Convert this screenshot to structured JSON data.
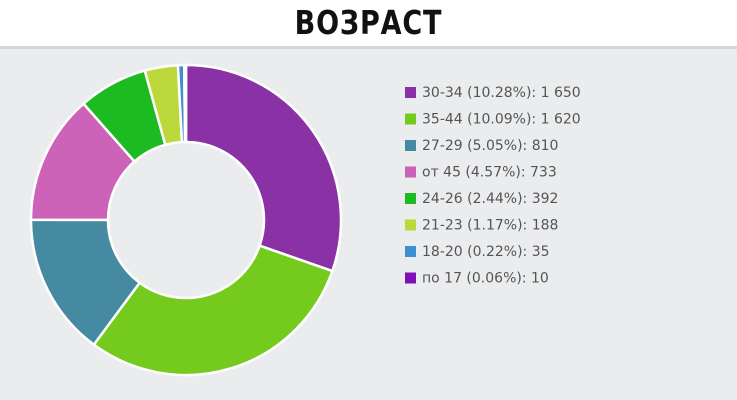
{
  "title": "ВОЗРАСТ",
  "chart_data": {
    "type": "pie",
    "variant": "donut",
    "slices": [
      {
        "label": "30-34",
        "percent": "10.28%",
        "value": 1650,
        "color": "#8a32a5",
        "legend": "30-34 (10.28%): 1 650"
      },
      {
        "label": "35-44",
        "percent": "10.09%",
        "value": 1620,
        "color": "#74cb1e",
        "legend": "35-44 (10.09%): 1 620"
      },
      {
        "label": "27-29",
        "percent": "5.05%",
        "value": 810,
        "color": "#468aa2",
        "legend": "27-29 (5.05%): 810"
      },
      {
        "label": "от 45",
        "percent": "4.57%",
        "value": 733,
        "color": "#cc63b8",
        "legend": "от 45 (4.57%): 733"
      },
      {
        "label": "24-26",
        "percent": "2.44%",
        "value": 392,
        "color": "#1dbb22",
        "legend": "24-26 (2.44%): 392"
      },
      {
        "label": "21-23",
        "percent": "1.17%",
        "value": 188,
        "color": "#bcd83a",
        "legend": "21-23 (1.17%): 188"
      },
      {
        "label": "18-20",
        "percent": "0.22%",
        "value": 35,
        "color": "#3e8fd0",
        "legend": "18-20 (0.22%): 35"
      },
      {
        "label": "по 17",
        "percent": "0.06%",
        "value": 10,
        "color": "#7e10b6",
        "legend": "по 17 (0.06%): 10"
      }
    ],
    "legend_position": "right"
  }
}
